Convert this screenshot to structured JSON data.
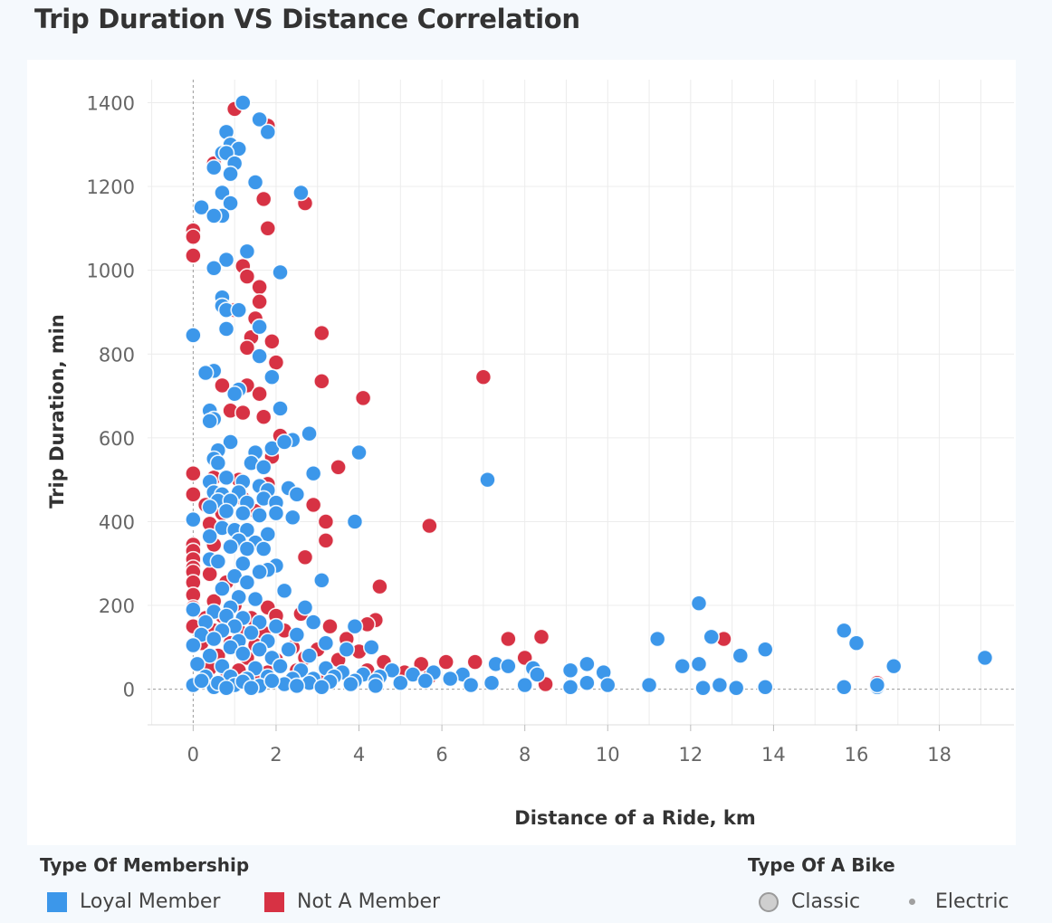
{
  "page_title": "Trip Duration VS Distance Correlation",
  "chart_data": {
    "type": "scatter",
    "title": "Trip Duration VS Distance Correlation",
    "xlabel": "Distance of a Ride, km",
    "ylabel": "Trip Duration, min",
    "xlim": [
      -1.1,
      19.8
    ],
    "ylim": [
      -85,
      1455
    ],
    "xticks": [
      0,
      2,
      4,
      6,
      8,
      10,
      12,
      14,
      16,
      18
    ],
    "yticks": [
      0,
      200,
      400,
      600,
      800,
      1000,
      1200,
      1400
    ],
    "grid": true,
    "zero_lines": true,
    "series": [
      {
        "name": "Loyal Member",
        "color": "#3c97ea",
        "points": [
          [
            1.2,
            1400
          ],
          [
            1.6,
            1360
          ],
          [
            1.8,
            1330
          ],
          [
            0.8,
            1330
          ],
          [
            0.9,
            1300
          ],
          [
            1.1,
            1290
          ],
          [
            0.7,
            1280
          ],
          [
            0.8,
            1280
          ],
          [
            1.0,
            1255
          ],
          [
            0.9,
            1230
          ],
          [
            0.5,
            1245
          ],
          [
            1.5,
            1210
          ],
          [
            2.6,
            1185
          ],
          [
            0.7,
            1185
          ],
          [
            0.2,
            1150
          ],
          [
            0.9,
            1160
          ],
          [
            0.7,
            1130
          ],
          [
            0.5,
            1130
          ],
          [
            1.3,
            1045
          ],
          [
            0.8,
            1025
          ],
          [
            0.5,
            1005
          ],
          [
            2.1,
            995
          ],
          [
            0.7,
            935
          ],
          [
            0.7,
            915
          ],
          [
            0.8,
            905
          ],
          [
            1.1,
            905
          ],
          [
            1.6,
            865
          ],
          [
            0.0,
            845
          ],
          [
            0.8,
            860
          ],
          [
            1.6,
            795
          ],
          [
            0.5,
            760
          ],
          [
            0.3,
            755
          ],
          [
            1.9,
            745
          ],
          [
            1.1,
            715
          ],
          [
            1.0,
            705
          ],
          [
            2.1,
            670
          ],
          [
            0.4,
            665
          ],
          [
            0.5,
            645
          ],
          [
            0.4,
            640
          ],
          [
            2.8,
            610
          ],
          [
            0.9,
            590
          ],
          [
            1.9,
            575
          ],
          [
            2.4,
            595
          ],
          [
            2.2,
            590
          ],
          [
            4.0,
            565
          ],
          [
            0.6,
            570
          ],
          [
            1.5,
            565
          ],
          [
            0.5,
            550
          ],
          [
            0.6,
            540
          ],
          [
            1.4,
            540
          ],
          [
            1.7,
            530
          ],
          [
            2.9,
            515
          ],
          [
            7.1,
            500
          ],
          [
            0.4,
            495
          ],
          [
            0.8,
            505
          ],
          [
            1.2,
            495
          ],
          [
            1.6,
            485
          ],
          [
            0.5,
            470
          ],
          [
            0.7,
            465
          ],
          [
            1.1,
            470
          ],
          [
            1.8,
            475
          ],
          [
            2.3,
            480
          ],
          [
            2.5,
            465
          ],
          [
            0.6,
            450
          ],
          [
            0.9,
            450
          ],
          [
            1.3,
            445
          ],
          [
            1.7,
            455
          ],
          [
            2.0,
            445
          ],
          [
            0.4,
            435
          ],
          [
            0.8,
            425
          ],
          [
            1.2,
            420
          ],
          [
            1.6,
            415
          ],
          [
            2.0,
            420
          ],
          [
            2.4,
            410
          ],
          [
            3.9,
            400
          ],
          [
            0.0,
            405
          ],
          [
            0.7,
            385
          ],
          [
            1.0,
            380
          ],
          [
            1.3,
            380
          ],
          [
            1.8,
            370
          ],
          [
            0.4,
            365
          ],
          [
            1.1,
            355
          ],
          [
            1.5,
            350
          ],
          [
            1.7,
            335
          ],
          [
            0.9,
            340
          ],
          [
            1.3,
            335
          ],
          [
            0.4,
            310
          ],
          [
            0.6,
            305
          ],
          [
            1.2,
            300
          ],
          [
            2.0,
            295
          ],
          [
            1.8,
            285
          ],
          [
            1.6,
            280
          ],
          [
            1.0,
            270
          ],
          [
            1.3,
            255
          ],
          [
            3.1,
            260
          ],
          [
            0.7,
            240
          ],
          [
            2.2,
            235
          ],
          [
            1.1,
            220
          ],
          [
            1.5,
            215
          ],
          [
            0.9,
            195
          ],
          [
            2.7,
            195
          ],
          [
            0.0,
            190
          ],
          [
            0.5,
            185
          ],
          [
            0.8,
            175
          ],
          [
            1.2,
            170
          ],
          [
            1.6,
            160
          ],
          [
            2.9,
            160
          ],
          [
            0.3,
            160
          ],
          [
            1.0,
            150
          ],
          [
            2.0,
            150
          ],
          [
            3.9,
            150
          ],
          [
            0.7,
            140
          ],
          [
            1.4,
            135
          ],
          [
            2.5,
            130
          ],
          [
            0.2,
            130
          ],
          [
            0.5,
            120
          ],
          [
            1.1,
            115
          ],
          [
            1.8,
            115
          ],
          [
            3.2,
            110
          ],
          [
            11.2,
            120
          ],
          [
            12.2,
            205
          ],
          [
            12.5,
            125
          ],
          [
            15.7,
            140
          ],
          [
            16.0,
            110
          ],
          [
            13.8,
            95
          ],
          [
            13.2,
            80
          ],
          [
            0.0,
            105
          ],
          [
            0.9,
            100
          ],
          [
            1.6,
            95
          ],
          [
            2.3,
            95
          ],
          [
            4.3,
            100
          ],
          [
            3.7,
            95
          ],
          [
            0.4,
            80
          ],
          [
            1.2,
            85
          ],
          [
            1.9,
            75
          ],
          [
            2.8,
            80
          ],
          [
            19.1,
            75
          ],
          [
            16.9,
            55
          ],
          [
            11.8,
            55
          ],
          [
            12.2,
            60
          ],
          [
            9.5,
            60
          ],
          [
            9.9,
            40
          ],
          [
            9.1,
            45
          ],
          [
            8.2,
            50
          ],
          [
            8.3,
            35
          ],
          [
            7.3,
            60
          ],
          [
            7.6,
            55
          ],
          [
            6.5,
            35
          ],
          [
            5.8,
            40
          ],
          [
            5.3,
            35
          ],
          [
            4.8,
            45
          ],
          [
            4.5,
            30
          ],
          [
            0.1,
            60
          ],
          [
            0.7,
            55
          ],
          [
            1.5,
            50
          ],
          [
            2.1,
            55
          ],
          [
            2.6,
            45
          ],
          [
            3.2,
            50
          ],
          [
            3.6,
            40
          ],
          [
            4.1,
            35
          ],
          [
            0.3,
            30
          ],
          [
            0.9,
            30
          ],
          [
            1.3,
            25
          ],
          [
            1.8,
            30
          ],
          [
            2.4,
            25
          ],
          [
            2.9,
            25
          ],
          [
            3.4,
            30
          ],
          [
            3.9,
            20
          ],
          [
            4.4,
            20
          ],
          [
            5.0,
            15
          ],
          [
            5.6,
            20
          ],
          [
            6.2,
            25
          ],
          [
            6.7,
            10
          ],
          [
            7.2,
            15
          ],
          [
            8.0,
            10
          ],
          [
            9.1,
            5
          ],
          [
            9.5,
            15
          ],
          [
            10.0,
            10
          ],
          [
            11.0,
            10
          ],
          [
            12.3,
            3
          ],
          [
            12.7,
            10
          ],
          [
            13.1,
            3
          ],
          [
            13.8,
            5
          ],
          [
            15.7,
            5
          ],
          [
            16.5,
            5
          ],
          [
            16.5,
            10
          ],
          [
            0.0,
            10
          ],
          [
            0.5,
            5
          ],
          [
            1.0,
            10
          ],
          [
            1.6,
            8
          ],
          [
            2.2,
            12
          ],
          [
            2.8,
            15
          ],
          [
            3.3,
            18
          ],
          [
            3.8,
            12
          ],
          [
            4.4,
            8
          ],
          [
            0.2,
            20
          ],
          [
            0.6,
            15
          ],
          [
            1.2,
            18
          ],
          [
            1.9,
            20
          ],
          [
            2.5,
            8
          ],
          [
            3.1,
            5
          ],
          [
            0.8,
            3
          ],
          [
            1.4,
            3
          ]
        ]
      },
      {
        "name": "Not A Member",
        "color": "#d73244",
        "points": [
          [
            1.0,
            1385
          ],
          [
            1.8,
            1345
          ],
          [
            0.5,
            1255
          ],
          [
            2.7,
            1160
          ],
          [
            1.7,
            1170
          ],
          [
            1.8,
            1100
          ],
          [
            0.0,
            1095
          ],
          [
            0.0,
            1080
          ],
          [
            0.0,
            1035
          ],
          [
            1.2,
            1010
          ],
          [
            1.3,
            985
          ],
          [
            1.6,
            960
          ],
          [
            1.6,
            925
          ],
          [
            1.0,
            905
          ],
          [
            1.5,
            885
          ],
          [
            3.1,
            850
          ],
          [
            1.4,
            840
          ],
          [
            1.9,
            830
          ],
          [
            1.3,
            815
          ],
          [
            2.0,
            780
          ],
          [
            7.0,
            745
          ],
          [
            3.1,
            735
          ],
          [
            0.7,
            725
          ],
          [
            1.3,
            725
          ],
          [
            1.6,
            705
          ],
          [
            4.1,
            695
          ],
          [
            0.9,
            665
          ],
          [
            1.2,
            660
          ],
          [
            1.7,
            650
          ],
          [
            2.1,
            605
          ],
          [
            1.9,
            555
          ],
          [
            3.5,
            530
          ],
          [
            0.0,
            515
          ],
          [
            0.5,
            505
          ],
          [
            1.1,
            500
          ],
          [
            1.8,
            490
          ],
          [
            0.0,
            465
          ],
          [
            0.3,
            440
          ],
          [
            0.6,
            445
          ],
          [
            1.2,
            455
          ],
          [
            2.9,
            440
          ],
          [
            0.7,
            420
          ],
          [
            1.5,
            425
          ],
          [
            3.2,
            400
          ],
          [
            0.4,
            395
          ],
          [
            5.7,
            390
          ],
          [
            0.0,
            345
          ],
          [
            0.0,
            330
          ],
          [
            0.5,
            345
          ],
          [
            0.0,
            310
          ],
          [
            3.2,
            355
          ],
          [
            2.7,
            315
          ],
          [
            0.0,
            290
          ],
          [
            0.0,
            280
          ],
          [
            0.4,
            275
          ],
          [
            0.0,
            255
          ],
          [
            0.8,
            255
          ],
          [
            4.5,
            245
          ],
          [
            0.0,
            225
          ],
          [
            0.5,
            210
          ],
          [
            1.0,
            200
          ],
          [
            0.0,
            195
          ],
          [
            1.8,
            195
          ],
          [
            0.3,
            170
          ],
          [
            0.7,
            175
          ],
          [
            1.4,
            170
          ],
          [
            2.0,
            175
          ],
          [
            2.6,
            180
          ],
          [
            4.4,
            165
          ],
          [
            4.2,
            155
          ],
          [
            3.3,
            150
          ],
          [
            0.0,
            150
          ],
          [
            0.5,
            140
          ],
          [
            1.1,
            140
          ],
          [
            1.7,
            135
          ],
          [
            2.2,
            140
          ],
          [
            8.4,
            125
          ],
          [
            7.6,
            120
          ],
          [
            12.8,
            120
          ],
          [
            3.7,
            120
          ],
          [
            0.2,
            110
          ],
          [
            0.9,
            110
          ],
          [
            1.5,
            105
          ],
          [
            2.4,
            100
          ],
          [
            3.0,
            95
          ],
          [
            4.0,
            90
          ],
          [
            0.6,
            80
          ],
          [
            1.3,
            75
          ],
          [
            2.0,
            70
          ],
          [
            2.7,
            75
          ],
          [
            3.5,
            70
          ],
          [
            4.6,
            65
          ],
          [
            5.5,
            60
          ],
          [
            6.1,
            65
          ],
          [
            6.8,
            65
          ],
          [
            8.0,
            75
          ],
          [
            0.4,
            50
          ],
          [
            1.1,
            45
          ],
          [
            1.8,
            40
          ],
          [
            2.5,
            45
          ],
          [
            3.2,
            35
          ],
          [
            4.2,
            45
          ],
          [
            5.1,
            40
          ],
          [
            5.7,
            30
          ],
          [
            8.5,
            12
          ],
          [
            16.5,
            15
          ],
          [
            0.2,
            20
          ],
          [
            0.8,
            25
          ],
          [
            1.6,
            20
          ],
          [
            2.3,
            15
          ]
        ]
      }
    ]
  },
  "legend_membership": {
    "title": "Type Of Membership",
    "items": [
      {
        "label": "Loyal Member",
        "color": "#3c97ea"
      },
      {
        "label": "Not A Member",
        "color": "#d73244"
      }
    ]
  },
  "legend_bike": {
    "title": "Type Of A Bike",
    "items": [
      {
        "label": "Classic",
        "shape": "large-circle"
      },
      {
        "label": "Electric",
        "shape": "small-dot"
      }
    ]
  }
}
